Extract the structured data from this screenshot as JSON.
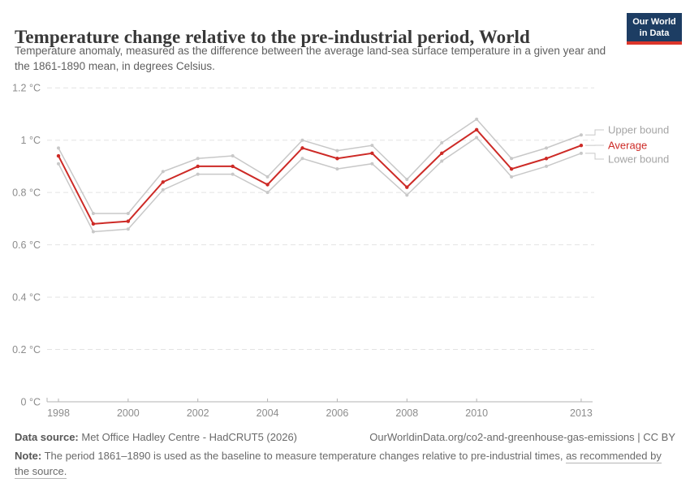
{
  "header": {
    "title": "Temperature change relative to the pre-industrial period, World",
    "subtitle": "Temperature anomaly, measured as the difference between the average land-sea surface temperature in a given year and the 1861-1890 mean, in degrees Celsius.",
    "logo_line1": "Our World",
    "logo_line2": "in Data"
  },
  "chart_data": {
    "type": "line",
    "title": "Temperature change relative to the pre-industrial period, World",
    "x": [
      1998,
      1999,
      2000,
      2001,
      2002,
      2003,
      2004,
      2005,
      2006,
      2007,
      2008,
      2009,
      2010,
      2011,
      2012,
      2013
    ],
    "series": [
      {
        "name": "Upper bound",
        "color": "#c8c8c8",
        "label_color": "#a5a5a5",
        "values": [
          0.97,
          0.72,
          0.72,
          0.88,
          0.93,
          0.94,
          0.86,
          1.0,
          0.96,
          0.98,
          0.85,
          0.99,
          1.08,
          0.93,
          0.97,
          1.02
        ]
      },
      {
        "name": "Average",
        "color": "#cd2a26",
        "label_color": "#cd2a26",
        "values": [
          0.94,
          0.68,
          0.69,
          0.84,
          0.9,
          0.9,
          0.83,
          0.97,
          0.93,
          0.95,
          0.82,
          0.95,
          1.04,
          0.89,
          0.93,
          0.98
        ]
      },
      {
        "name": "Lower bound",
        "color": "#c8c8c8",
        "label_color": "#a5a5a5",
        "values": [
          0.91,
          0.65,
          0.66,
          0.81,
          0.87,
          0.87,
          0.8,
          0.93,
          0.89,
          0.91,
          0.79,
          0.92,
          1.01,
          0.86,
          0.9,
          0.95
        ]
      }
    ],
    "ylim": [
      0,
      1.2
    ],
    "yticks": [
      0,
      0.2,
      0.4,
      0.6,
      0.8,
      1,
      1.2
    ],
    "ytick_labels": [
      "0 °C",
      "0.2 °C",
      "0.4 °C",
      "0.6 °C",
      "0.8 °C",
      "1 °C",
      "1.2 °C"
    ],
    "xticks": [
      1998,
      2000,
      2002,
      2004,
      2006,
      2008,
      2010,
      2013
    ],
    "xlabel": "",
    "ylabel": "",
    "grid": "horizontal-dashed",
    "legend_position": "right"
  },
  "footer": {
    "datasource_label": "Data source:",
    "datasource_value": "Met Office Hadley Centre - HadCRUT5 (2026)",
    "attribution": "OurWorldinData.org/co2-and-greenhouse-gas-emissions | CC BY",
    "note_label": "Note:",
    "note_text": "The period 1861–1890 is used as the baseline to measure temperature changes relative to pre-industrial times,",
    "note_link": "as recommended by the source."
  },
  "colors": {
    "accent_red": "#cd2a26",
    "bound_gray": "#c8c8c8",
    "axis_text": "#8c8c8c",
    "gridline": "#e3e3e3",
    "axis_line": "#b3b3b3",
    "logo_navy": "#1d3d63",
    "logo_red": "#dc352b"
  }
}
